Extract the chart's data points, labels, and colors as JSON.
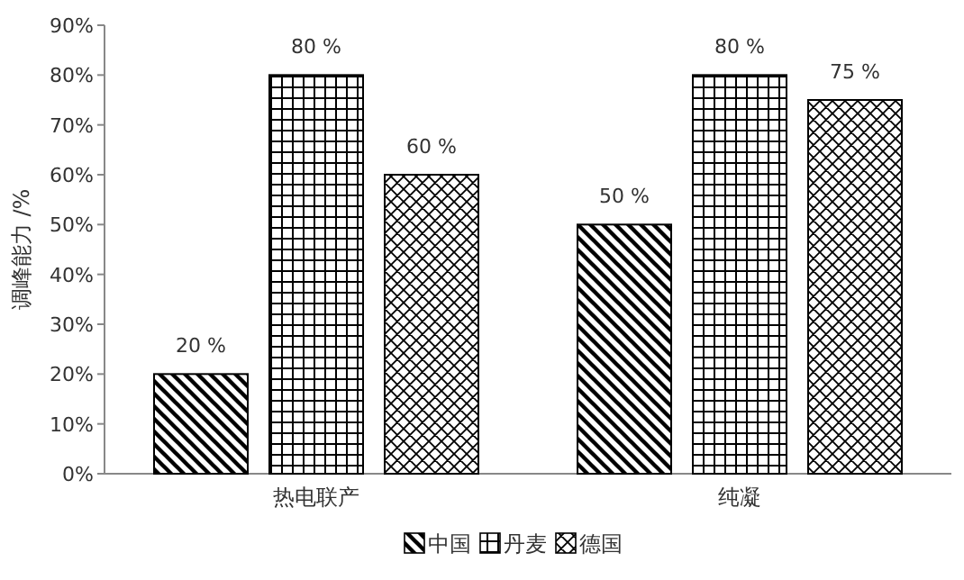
{
  "chart_data": {
    "type": "bar",
    "ylabel": "调峰能力 /%",
    "categories": [
      "热电联产",
      "纯凝"
    ],
    "series": [
      {
        "name": "中国",
        "color": "#000000",
        "values": [
          20,
          50
        ],
        "value_labels": [
          "20 %",
          "50 %"
        ]
      },
      {
        "name": "丹麦",
        "color": "#000000",
        "values": [
          80,
          80
        ],
        "value_labels": [
          "80 %",
          "80 %"
        ]
      },
      {
        "name": "德国",
        "color": "#000000",
        "values": [
          60,
          75
        ],
        "value_labels": [
          "60 %",
          "75 %"
        ]
      }
    ],
    "ylim": [
      0,
      90
    ],
    "yticks": [
      {
        "value": 0,
        "label": "0%"
      },
      {
        "value": 10,
        "label": "10%"
      },
      {
        "value": 20,
        "label": "20%"
      },
      {
        "value": 30,
        "label": "30%"
      },
      {
        "value": 40,
        "label": "40%"
      },
      {
        "value": 50,
        "label": "50%"
      },
      {
        "value": 60,
        "label": "60%"
      },
      {
        "value": 70,
        "label": "70%"
      },
      {
        "value": 80,
        "label": "80%"
      },
      {
        "value": 90,
        "label": "90%"
      }
    ],
    "legend": "bottom"
  }
}
